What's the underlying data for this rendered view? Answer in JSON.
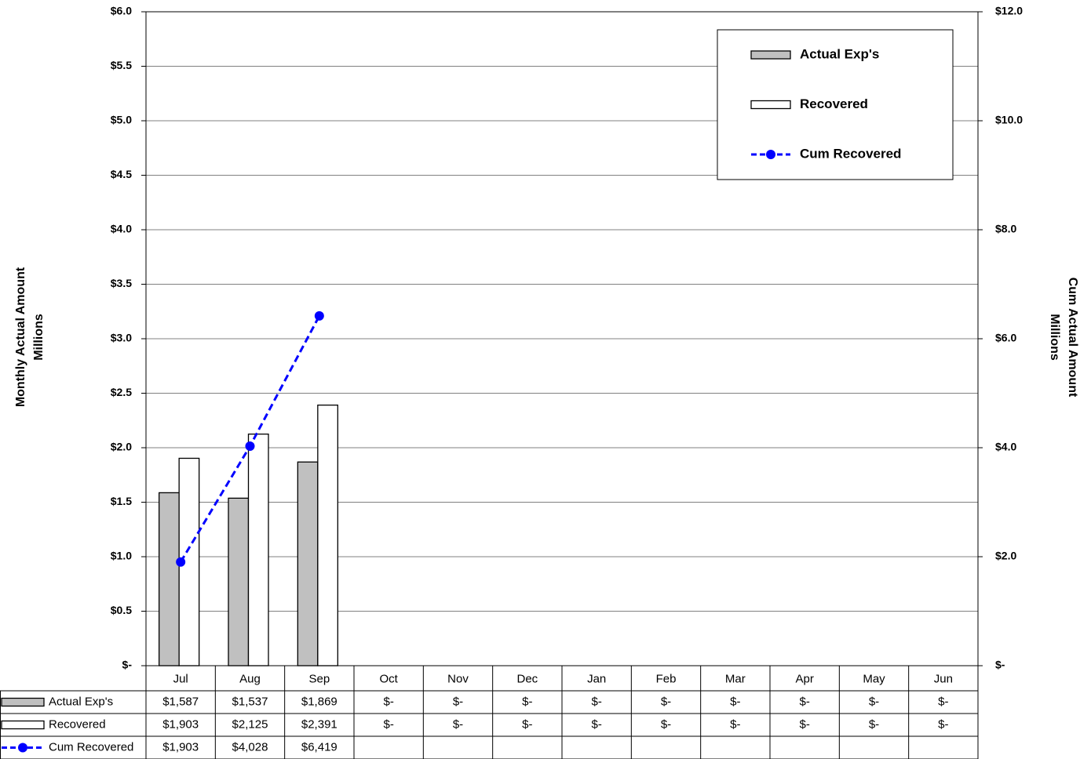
{
  "chart_data": {
    "type": "bar",
    "y_label": [
      "Monthly Actual Amount",
      "Millions"
    ],
    "y2_label": [
      "Cum Actual Amount",
      "Millions"
    ],
    "categories": [
      "Jul",
      "Aug",
      "Sep",
      "Oct",
      "Nov",
      "Dec",
      "Jan",
      "Feb",
      "Mar",
      "Apr",
      "May",
      "Jun"
    ],
    "series": [
      {
        "name": "Actual Exp's",
        "type": "bar",
        "color": "#c0c0c0",
        "values": [
          1.587,
          1.537,
          1.869,
          0,
          0,
          0,
          0,
          0,
          0,
          0,
          0,
          0
        ],
        "value_labels": [
          "$1,587",
          "$1,537",
          "$1,869",
          "$-",
          "$-",
          "$-",
          "$-",
          "$-",
          "$-",
          "$-",
          "$-",
          "$-"
        ]
      },
      {
        "name": "Recovered",
        "type": "bar",
        "color": "#ffffff",
        "values": [
          1.903,
          2.125,
          2.391,
          0,
          0,
          0,
          0,
          0,
          0,
          0,
          0,
          0
        ],
        "value_labels": [
          "$1,903",
          "$2,125",
          "$2,391",
          "$-",
          "$-",
          "$-",
          "$-",
          "$-",
          "$-",
          "$-",
          "$-",
          "$-"
        ]
      },
      {
        "name": "Cum Recovered",
        "type": "line",
        "color": "#0000ff",
        "axis": "y2",
        "values": [
          1.903,
          4.028,
          6.419,
          null,
          null,
          null,
          null,
          null,
          null,
          null,
          null,
          null
        ],
        "value_labels": [
          "$1,903",
          "$4,028",
          "$6,419",
          null,
          null,
          null,
          null,
          null,
          null,
          null,
          null,
          null
        ]
      }
    ],
    "ylim": [
      0,
      6
    ],
    "yticks": [
      {
        "value": 0,
        "label": "$-"
      },
      {
        "value": 0.5,
        "label": "$0.5"
      },
      {
        "value": 1,
        "label": "$1.0"
      },
      {
        "value": 1.5,
        "label": "$1.5"
      },
      {
        "value": 2,
        "label": "$2.0"
      },
      {
        "value": 2.5,
        "label": "$2.5"
      },
      {
        "value": 3,
        "label": "$3.0"
      },
      {
        "value": 3.5,
        "label": "$3.5"
      },
      {
        "value": 4,
        "label": "$4.0"
      },
      {
        "value": 4.5,
        "label": "$4.5"
      },
      {
        "value": 5,
        "label": "$5.0"
      },
      {
        "value": 5.5,
        "label": "$5.5"
      },
      {
        "value": 6,
        "label": "$6.0"
      }
    ],
    "y2lim": [
      0,
      12
    ],
    "y2ticks": [
      {
        "value": 0,
        "label": "$-"
      },
      {
        "value": 2,
        "label": "$2.0"
      },
      {
        "value": 4,
        "label": "$4.0"
      },
      {
        "value": 6,
        "label": "$6.0"
      },
      {
        "value": 8,
        "label": "$8.0"
      },
      {
        "value": 10,
        "label": "$10.0"
      },
      {
        "value": 12,
        "label": "$12.0"
      }
    ],
    "grid": true,
    "legend": "top-right"
  }
}
